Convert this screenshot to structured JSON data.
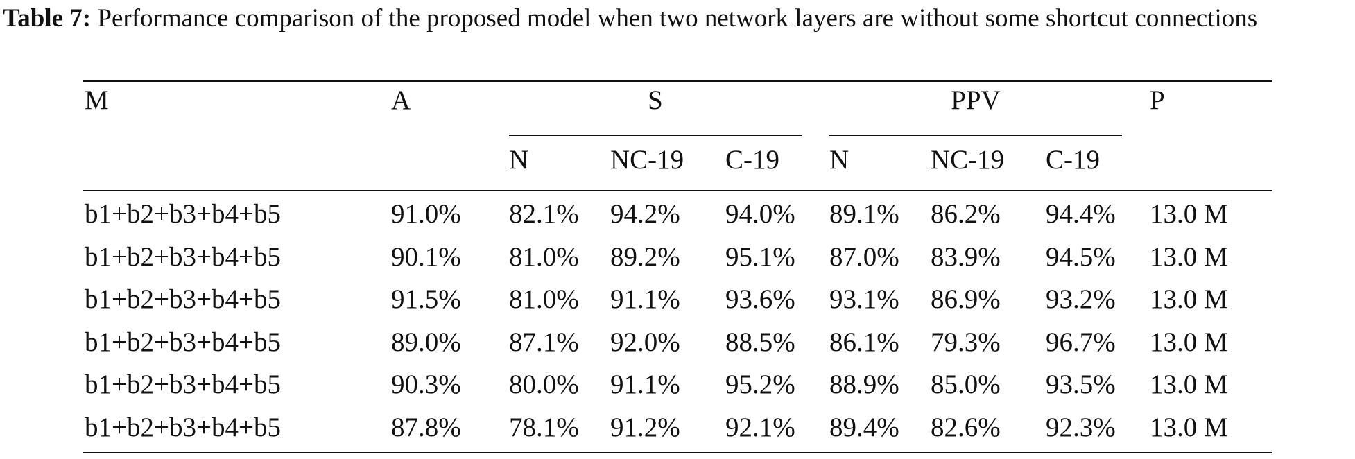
{
  "caption": {
    "label": "Table 7:",
    "text": " Performance comparison of the proposed model when two network layers are without some shortcut connections"
  },
  "table": {
    "header": {
      "model": "M",
      "accuracy": "A",
      "sensitivity": "S",
      "ppv": "PPV",
      "params": "P"
    },
    "subheaders": {
      "s_n": "N",
      "s_nc19": "NC-19",
      "s_c19": "C-19",
      "p_n": "N",
      "p_nc19": "NC-19",
      "p_c19": "C-19"
    },
    "rows": [
      {
        "model": "b1+b2+b3+b4+b5",
        "a": "91.0%",
        "s_n": "82.1%",
        "s_nc19": "94.2%",
        "s_c19": "94.0%",
        "p_n": "89.1%",
        "p_nc19": "86.2%",
        "p_c19": "94.4%",
        "params": "13.0 M"
      },
      {
        "model": "b1+b2+b3+b4+b5",
        "a": "90.1%",
        "s_n": "81.0%",
        "s_nc19": "89.2%",
        "s_c19": "95.1%",
        "p_n": "87.0%",
        "p_nc19": "83.9%",
        "p_c19": "94.5%",
        "params": "13.0 M"
      },
      {
        "model": "b1+b2+b3+b4+b5",
        "a": "91.5%",
        "s_n": "81.0%",
        "s_nc19": "91.1%",
        "s_c19": "93.6%",
        "p_n": "93.1%",
        "p_nc19": "86.9%",
        "p_c19": "93.2%",
        "params": "13.0 M"
      },
      {
        "model": "b1+b2+b3+b4+b5",
        "a": "89.0%",
        "s_n": "87.1%",
        "s_nc19": "92.0%",
        "s_c19": "88.5%",
        "p_n": "86.1%",
        "p_nc19": "79.3%",
        "p_c19": "96.7%",
        "params": "13.0 M"
      },
      {
        "model": "b1+b2+b3+b4+b5",
        "a": "90.3%",
        "s_n": "80.0%",
        "s_nc19": "91.1%",
        "s_c19": "95.2%",
        "p_n": "88.9%",
        "p_nc19": "85.0%",
        "p_c19": "93.5%",
        "params": "13.0 M"
      },
      {
        "model": "b1+b2+b3+b4+b5",
        "a": "87.8%",
        "s_n": "78.1%",
        "s_nc19": "91.2%",
        "s_c19": "92.1%",
        "p_n": "89.4%",
        "p_nc19": "82.6%",
        "p_c19": "92.3%",
        "params": "13.0 M"
      }
    ]
  }
}
